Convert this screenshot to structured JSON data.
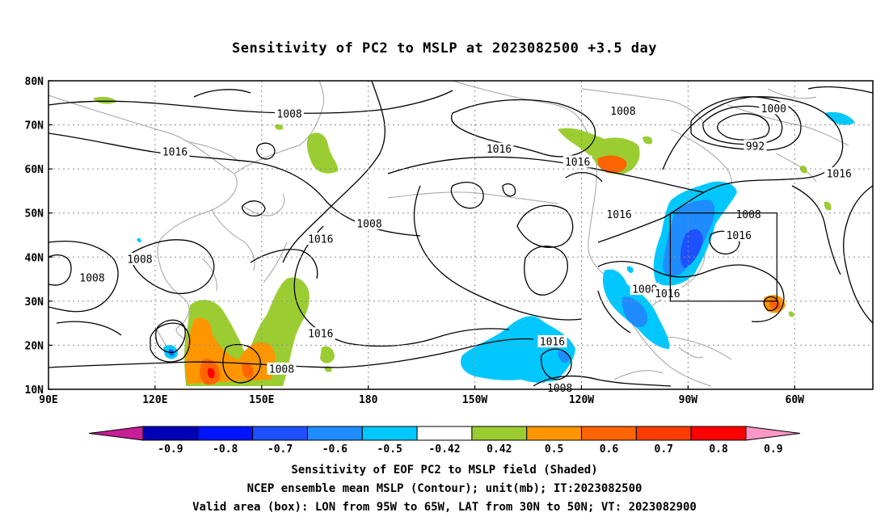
{
  "title": "Sensitivity of PC2 to MSLP at 2023082500 +3.5 day",
  "map": {
    "lat_labels": [
      "80N",
      "70N",
      "60N",
      "50N",
      "40N",
      "30N",
      "20N",
      "10N"
    ],
    "lon_labels": [
      "90E",
      "120E",
      "150E",
      "180",
      "150W",
      "120W",
      "90W",
      "60W"
    ],
    "contour_labels": [
      {
        "lon": 157.8,
        "lat": 72.5,
        "text": "1008"
      },
      {
        "lon": 251.7,
        "lat": 73.1,
        "text": "1008"
      },
      {
        "lon": 294.1,
        "lat": 73.7,
        "text": "1000"
      },
      {
        "lon": 288.9,
        "lat": 65.2,
        "text": "992"
      },
      {
        "lon": 125.6,
        "lat": 63.9,
        "text": "1016"
      },
      {
        "lon": 216.8,
        "lat": 64.5,
        "text": "1016"
      },
      {
        "lon": 238.9,
        "lat": 61.6,
        "text": "1016"
      },
      {
        "lon": 312.5,
        "lat": 58.9,
        "text": "1016"
      },
      {
        "lon": 287.0,
        "lat": 49.7,
        "text": "1008"
      },
      {
        "lon": 180.3,
        "lat": 47.6,
        "text": "1008"
      },
      {
        "lon": 250.6,
        "lat": 49.7,
        "text": "1016"
      },
      {
        "lon": 166.6,
        "lat": 44.1,
        "text": "1016"
      },
      {
        "lon": 284.3,
        "lat": 44.9,
        "text": "1016"
      },
      {
        "lon": 115.7,
        "lat": 39.5,
        "text": "1008"
      },
      {
        "lon": 102.3,
        "lat": 35.3,
        "text": "1008"
      },
      {
        "lon": 257.8,
        "lat": 32.7,
        "text": "1008"
      },
      {
        "lon": 264.2,
        "lat": 31.7,
        "text": "1016"
      },
      {
        "lon": 166.6,
        "lat": 22.6,
        "text": "1016"
      },
      {
        "lon": 231.8,
        "lat": 20.8,
        "text": "1016"
      },
      {
        "lon": 155.6,
        "lat": 14.6,
        "text": "1008"
      },
      {
        "lon": 233.9,
        "lat": 10.3,
        "text": "1008"
      }
    ],
    "valid_box": {
      "lon_min": 265,
      "lon_max": 295,
      "lat_min": 30,
      "lat_max": 50
    }
  },
  "colorbar": {
    "labels": [
      "-0.9",
      "-0.8",
      "-0.7",
      "-0.6",
      "-0.5",
      "-0.42",
      "0.42",
      "0.5",
      "0.6",
      "0.7",
      "0.8",
      "0.9"
    ],
    "colors": [
      "#0000b4",
      "#0014ff",
      "#1e50ff",
      "#1e8cff",
      "#00c8ff",
      "#ffffff",
      "#9bcd32",
      "#ff9600",
      "#ff6400",
      "#ff3c00",
      "#ff0000"
    ],
    "low_color": "#c81e96",
    "high_color": "#ff96c8"
  },
  "captions": [
    "Sensitivity of EOF PC2 to MSLP field (Shaded)",
    "NCEP ensemble mean MSLP (Contour); unit(mb); IT:2023082500",
    "Valid area (box): LON from 95W to 65W, LAT from 30N to 50N; VT: 2023082900"
  ]
}
